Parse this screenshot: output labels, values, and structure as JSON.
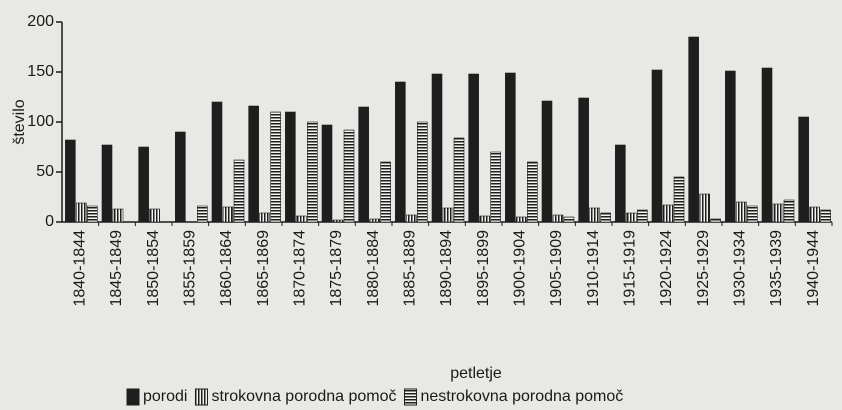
{
  "chart_data": {
    "type": "bar",
    "y_label": "število",
    "x_label": "petletje",
    "categories": [
      "1840-1844",
      "1845-1849",
      "1850-1854",
      "1855-1859",
      "1860-1864",
      "1865-1869",
      "1870-1874",
      "1875-1879",
      "1880-1884",
      "1885-1889",
      "1890-1894",
      "1895-1899",
      "1900-1904",
      "1905-1909",
      "1910-1914",
      "1915-1919",
      "1920-1924",
      "1925-1929",
      "1930-1934",
      "1935-1939",
      "1940-1944"
    ],
    "series": [
      {
        "name": "porodi",
        "color": "#1e1e1e",
        "pattern": "solid",
        "values": [
          82,
          77,
          75,
          90,
          120,
          116,
          110,
          97,
          115,
          140,
          148,
          148,
          149,
          121,
          124,
          77,
          152,
          185,
          151,
          154,
          105
        ]
      },
      {
        "name": "strokovna porodna pomoč",
        "color": "#1e1e1e",
        "pattern": "vertical",
        "values": [
          19,
          13,
          13,
          0,
          15,
          9,
          6,
          2,
          3,
          7,
          14,
          6,
          5,
          7,
          14,
          9,
          17,
          28,
          20,
          18,
          15
        ]
      },
      {
        "name": "nestrokovna porodna pomoč",
        "color": "#1e1e1e",
        "pattern": "horizontal",
        "values": [
          16,
          0,
          0,
          16,
          62,
          110,
          100,
          92,
          60,
          100,
          84,
          70,
          60,
          5,
          9,
          12,
          45,
          3,
          16,
          22,
          12
        ]
      }
    ],
    "ylim": [
      0,
      200
    ],
    "yticks": [
      0,
      50,
      100,
      150,
      200
    ],
    "grid": false,
    "legend": "bottom"
  }
}
